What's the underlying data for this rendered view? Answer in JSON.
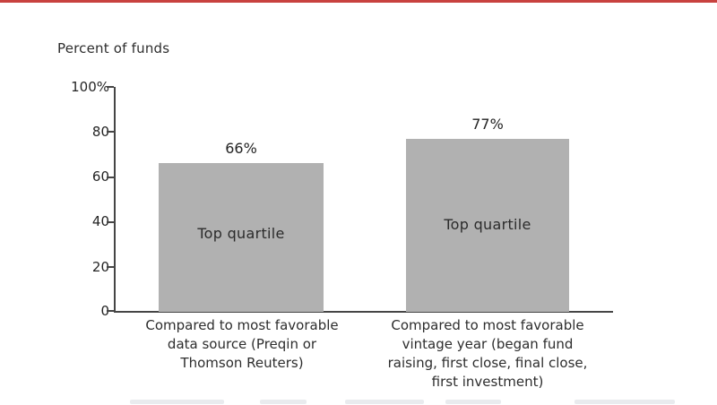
{
  "chart_data": {
    "type": "bar",
    "title": "Percent of funds",
    "categories": [
      "Compared to most favorable\ndata source (Preqin or\nThomson Reuters)",
      "Compared to most favorable\nvintage year (began fund\nraising, first close, final close,\nfirst investment)"
    ],
    "values": [
      66,
      77
    ],
    "value_labels": [
      "66%",
      "77%"
    ],
    "bar_labels": [
      "Top quartile",
      "Top quartile"
    ],
    "ylabel": "Percent of funds",
    "xlabel": "",
    "ylim": [
      0,
      100
    ],
    "ytick_labels": [
      "100%",
      "80",
      "60",
      "40",
      "20",
      "0"
    ],
    "grid": false,
    "legend": "none",
    "bar_color": "#b1b1b1",
    "axis_color": "#454545",
    "top_rule_color": "#c8423f"
  }
}
